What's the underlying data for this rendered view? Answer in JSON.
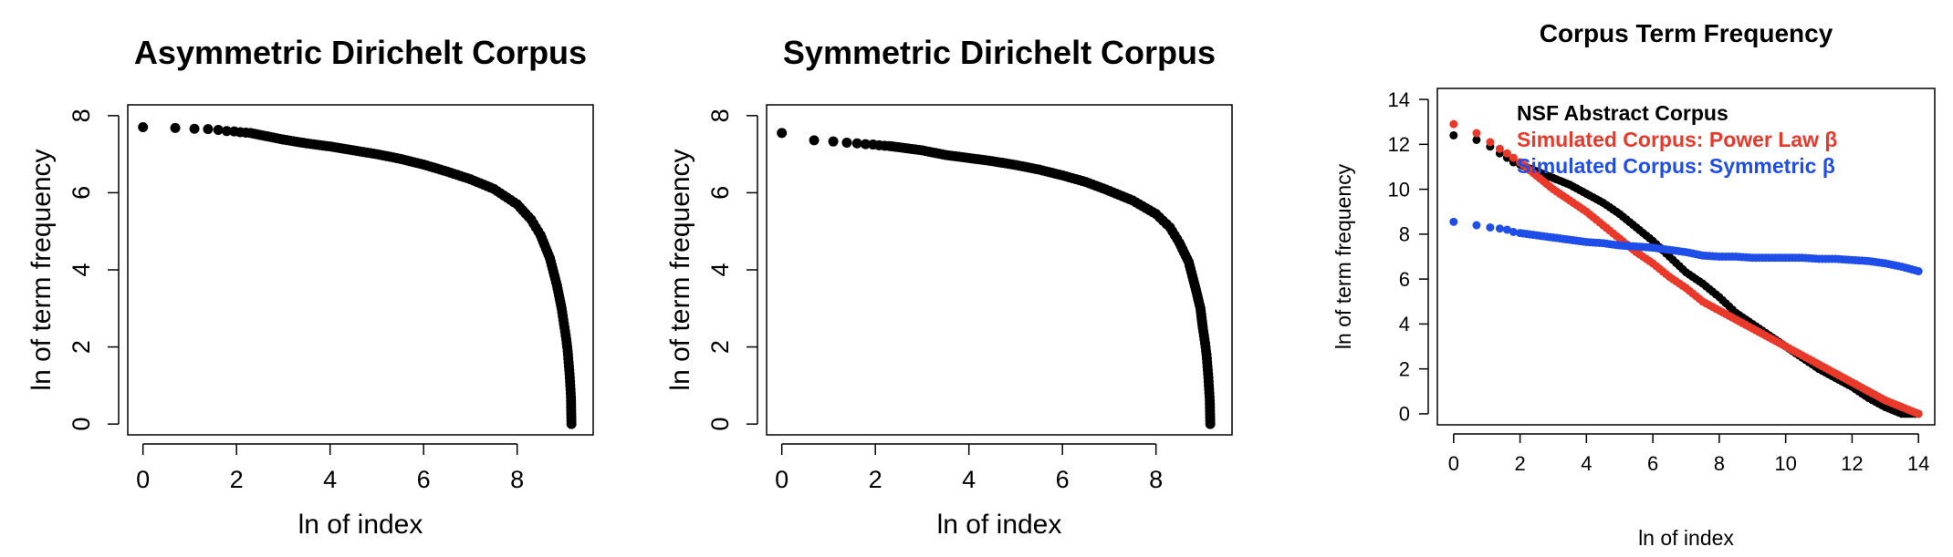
{
  "chart_data": [
    {
      "type": "scatter",
      "title": "Asymmetric Dirichelt Corpus",
      "xlabel": "ln of index",
      "ylabel": "ln of term frequency",
      "xlim": [
        0,
        9.3
      ],
      "ylim": [
        0,
        8
      ],
      "xticks": [
        "0",
        "2",
        "4",
        "6",
        "8"
      ],
      "yticks": [
        "0",
        "2",
        "4",
        "6",
        "8"
      ],
      "grid": false,
      "series": [
        {
          "color": "#000000",
          "x": [
            0,
            0.69,
            1.1,
            1.39,
            1.61,
            1.79,
            1.95,
            2.08,
            2.2,
            2.3,
            2.5,
            3.0,
            3.5,
            4.0,
            4.5,
            5.0,
            5.5,
            6.0,
            6.5,
            7.0,
            7.5,
            8.0,
            8.3,
            8.5,
            8.7,
            8.85,
            8.95,
            9.0,
            9.05,
            9.08,
            9.1,
            9.12,
            9.13,
            9.14,
            9.15,
            9.16
          ],
          "y": [
            7.7,
            7.68,
            7.66,
            7.65,
            7.63,
            7.6,
            7.59,
            7.57,
            7.56,
            7.55,
            7.5,
            7.38,
            7.28,
            7.2,
            7.1,
            7.0,
            6.88,
            6.73,
            6.55,
            6.35,
            6.1,
            5.7,
            5.3,
            4.9,
            4.3,
            3.6,
            3.0,
            2.6,
            2.2,
            1.9,
            1.6,
            1.3,
            1.1,
            0.9,
            0.7,
            0.0
          ]
        }
      ]
    },
    {
      "type": "scatter",
      "title": "Symmetric Dirichelt Corpus",
      "xlabel": "ln of index",
      "ylabel": "ln of term frequency",
      "xlim": [
        0,
        9.3
      ],
      "ylim": [
        0,
        8
      ],
      "xticks": [
        "0",
        "2",
        "4",
        "6",
        "8"
      ],
      "yticks": [
        "0",
        "2",
        "4",
        "6",
        "8"
      ],
      "grid": false,
      "series": [
        {
          "color": "#000000",
          "x": [
            0,
            0.69,
            1.1,
            1.39,
            1.61,
            1.79,
            1.95,
            2.08,
            2.2,
            2.3,
            2.5,
            3.0,
            3.5,
            4.0,
            4.5,
            5.0,
            5.5,
            6.0,
            6.5,
            7.0,
            7.5,
            8.0,
            8.3,
            8.5,
            8.7,
            8.85,
            8.95,
            9.0,
            9.05,
            9.08,
            9.1,
            9.12,
            9.13,
            9.14,
            9.15,
            9.16
          ],
          "y": [
            7.55,
            7.36,
            7.33,
            7.3,
            7.28,
            7.26,
            7.25,
            7.23,
            7.22,
            7.21,
            7.18,
            7.1,
            6.98,
            6.9,
            6.82,
            6.72,
            6.6,
            6.45,
            6.28,
            6.05,
            5.8,
            5.45,
            5.1,
            4.7,
            4.2,
            3.5,
            3.0,
            2.5,
            2.1,
            1.8,
            1.5,
            1.2,
            1.0,
            0.8,
            0.6,
            0.0
          ]
        }
      ]
    },
    {
      "type": "scatter",
      "title": "Corpus Term Frequency",
      "xlabel": "ln of index",
      "ylabel": "ln of term frequency",
      "xlim": [
        0,
        14
      ],
      "ylim": [
        0,
        14
      ],
      "xticks": [
        "0",
        "2",
        "4",
        "6",
        "8",
        "10",
        "12",
        "14"
      ],
      "yticks": [
        "0",
        "2",
        "4",
        "6",
        "8",
        "10",
        "12",
        "14"
      ],
      "grid": false,
      "legend": "top-right",
      "series": [
        {
          "name": "NSF Abstract Corpus",
          "color": "#000000",
          "x": [
            0,
            0.69,
            1.1,
            1.39,
            1.61,
            1.8,
            2.0,
            2.5,
            3.0,
            3.5,
            4.0,
            4.5,
            5.0,
            5.5,
            6.0,
            6.5,
            7.0,
            7.5,
            8.0,
            8.5,
            9.0,
            9.5,
            10.0,
            10.5,
            11.0,
            11.5,
            12.0,
            12.5,
            13.0,
            13.5,
            14.0
          ],
          "y": [
            12.4,
            12.2,
            11.9,
            11.6,
            11.4,
            11.2,
            11.1,
            10.8,
            10.5,
            10.2,
            9.8,
            9.4,
            8.9,
            8.3,
            7.7,
            7.0,
            6.3,
            5.8,
            5.2,
            4.5,
            4.0,
            3.5,
            3.0,
            2.5,
            2.0,
            1.6,
            1.2,
            0.7,
            0.3,
            0.0,
            0.0
          ]
        },
        {
          "name": "Simulated Corpus: Power Law β",
          "color": "#e8392a",
          "x": [
            0,
            0.69,
            1.1,
            1.39,
            1.61,
            1.8,
            2.0,
            2.5,
            3.0,
            3.5,
            4.0,
            4.5,
            5.0,
            5.5,
            6.0,
            6.5,
            7.0,
            7.5,
            8.0,
            8.5,
            9.0,
            9.5,
            10.0,
            10.5,
            11.0,
            11.5,
            12.0,
            12.5,
            13.0,
            13.5,
            14.0
          ],
          "y": [
            12.9,
            12.5,
            12.1,
            11.8,
            11.6,
            11.4,
            11.2,
            10.6,
            10.0,
            9.5,
            9.0,
            8.4,
            7.8,
            7.2,
            6.7,
            6.1,
            5.6,
            5.0,
            4.6,
            4.2,
            3.8,
            3.4,
            3.0,
            2.6,
            2.2,
            1.8,
            1.4,
            1.0,
            0.6,
            0.3,
            0.0
          ]
        },
        {
          "name": "Simulated Corpus: Symmetric β",
          "color": "#1f4de8",
          "x": [
            0,
            0.69,
            1.1,
            1.39,
            1.61,
            1.8,
            2.0,
            2.5,
            3.0,
            3.5,
            4.0,
            4.5,
            5.0,
            5.5,
            6.0,
            6.5,
            7.0,
            7.5,
            8.0,
            8.5,
            9.0,
            9.5,
            10.0,
            10.5,
            11.0,
            11.5,
            12.0,
            12.5,
            13.0,
            13.5,
            14.0
          ],
          "y": [
            8.55,
            8.4,
            8.3,
            8.25,
            8.2,
            8.1,
            8.05,
            7.95,
            7.85,
            7.75,
            7.65,
            7.6,
            7.5,
            7.45,
            7.4,
            7.3,
            7.2,
            7.05,
            7.0,
            7.0,
            6.95,
            6.95,
            6.95,
            6.95,
            6.9,
            6.9,
            6.85,
            6.8,
            6.7,
            6.55,
            6.35
          ]
        }
      ]
    }
  ]
}
